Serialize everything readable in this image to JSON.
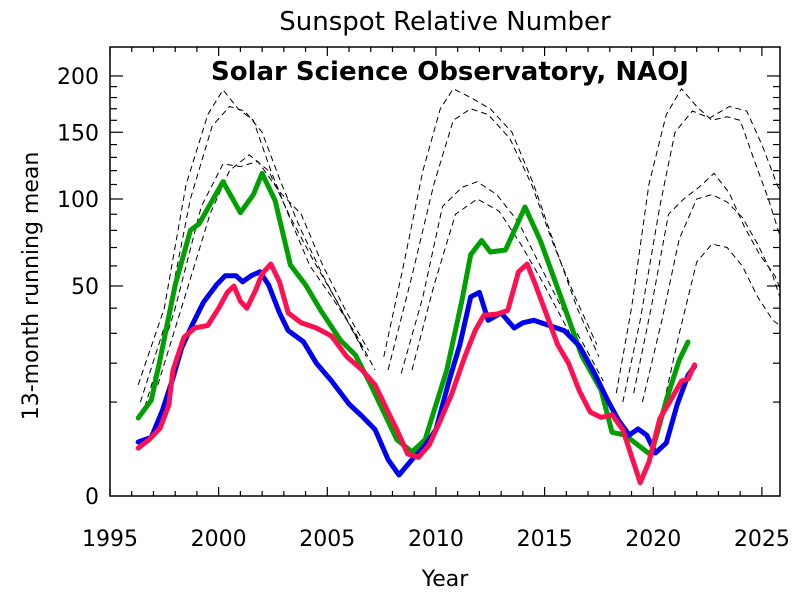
{
  "chart_data": {
    "type": "line",
    "title": "Sunspot Relative Number",
    "subtitle": "Solar Science Observatory, NAOJ",
    "xlabel": "Year",
    "ylabel": "13-month running mean",
    "y_scale": "sqrt",
    "xlim": [
      1995,
      2026
    ],
    "ylim": [
      0,
      220
    ],
    "x_ticks": [
      1995,
      2000,
      2005,
      2010,
      2015,
      2020,
      2025
    ],
    "y_ticks": [
      0,
      50,
      100,
      150,
      200
    ],
    "x_minor_step": 1,
    "y_minor_ticks": [
      10,
      20,
      30,
      40,
      60,
      70,
      80,
      90,
      110,
      120,
      130,
      140,
      160,
      170,
      180,
      190
    ],
    "series": [
      {
        "name": "green",
        "color": "#00a000",
        "style": "solid",
        "points": [
          [
            1996.3,
            6.9
          ],
          [
            1996.9,
            10.4
          ],
          [
            1997.3,
            21
          ],
          [
            1998.0,
            50.5
          ],
          [
            1998.7,
            80
          ],
          [
            1999.1,
            84
          ],
          [
            1999.9,
            104
          ],
          [
            2000.2,
            112
          ],
          [
            2001.0,
            91
          ],
          [
            2001.6,
            103
          ],
          [
            2002.0,
            118
          ],
          [
            2002.6,
            99
          ],
          [
            2003.3,
            60.5
          ],
          [
            2004.0,
            50.5
          ],
          [
            2004.7,
            39
          ],
          [
            2005.6,
            27.6
          ],
          [
            2006.3,
            22.5
          ],
          [
            2007.0,
            14
          ],
          [
            2008.2,
            3.6
          ],
          [
            2008.9,
            2.2
          ],
          [
            2009.5,
            3.6
          ],
          [
            2010.5,
            18
          ],
          [
            2011.2,
            43.5
          ],
          [
            2011.6,
            66
          ],
          [
            2012.1,
            74
          ],
          [
            2012.5,
            67.5
          ],
          [
            2013.2,
            68.6
          ],
          [
            2013.7,
            82.6
          ],
          [
            2014.1,
            94.7
          ],
          [
            2014.8,
            74
          ],
          [
            2015.8,
            43.5
          ],
          [
            2016.7,
            22.5
          ],
          [
            2017.6,
            12.7
          ],
          [
            2018.1,
            4.6
          ],
          [
            2018.7,
            4.2
          ],
          [
            2019.9,
            1.9
          ],
          [
            2020.6,
            10.4
          ],
          [
            2021.2,
            21
          ],
          [
            2021.6,
            26.9
          ]
        ]
      },
      {
        "name": "blue",
        "color": "#0000f0",
        "style": "solid",
        "points": [
          [
            1996.3,
            3.3
          ],
          [
            1996.9,
            3.9
          ],
          [
            1997.4,
            8.2
          ],
          [
            1997.9,
            15.8
          ],
          [
            1998.3,
            24.9
          ],
          [
            1998.8,
            33.5
          ],
          [
            1999.3,
            42.5
          ],
          [
            1999.9,
            50.5
          ],
          [
            2000.3,
            55
          ],
          [
            2000.8,
            55
          ],
          [
            2001.1,
            52
          ],
          [
            2001.5,
            55
          ],
          [
            2001.9,
            57
          ],
          [
            2002.3,
            50.5
          ],
          [
            2002.8,
            38
          ],
          [
            2003.2,
            31
          ],
          [
            2003.9,
            27
          ],
          [
            2004.5,
            20
          ],
          [
            2005.2,
            15
          ],
          [
            2006.0,
            9.6
          ],
          [
            2006.6,
            7.2
          ],
          [
            2007.2,
            5
          ],
          [
            2007.8,
            1.5
          ],
          [
            2008.3,
            0.5
          ],
          [
            2008.9,
            1.5
          ],
          [
            2009.5,
            2.9
          ],
          [
            2010.0,
            5
          ],
          [
            2010.6,
            15
          ],
          [
            2011.1,
            26
          ],
          [
            2011.6,
            45
          ],
          [
            2012.0,
            47
          ],
          [
            2012.4,
            35
          ],
          [
            2013.0,
            38
          ],
          [
            2013.6,
            32
          ],
          [
            2014.0,
            34
          ],
          [
            2014.5,
            35
          ],
          [
            2015.2,
            33
          ],
          [
            2015.9,
            31
          ],
          [
            2016.6,
            25.5
          ],
          [
            2017.3,
            17
          ],
          [
            2017.9,
            10.4
          ],
          [
            2018.4,
            6.5
          ],
          [
            2018.9,
            4.2
          ],
          [
            2019.3,
            5.1
          ],
          [
            2019.7,
            4.2
          ],
          [
            2020.1,
            2.1
          ],
          [
            2020.6,
            3.2
          ],
          [
            2021.1,
            9.5
          ],
          [
            2021.6,
            16.5
          ],
          [
            2021.9,
            19
          ]
        ]
      },
      {
        "name": "red",
        "color": "#ff1050",
        "style": "solid",
        "points": [
          [
            1996.3,
            2.6
          ],
          [
            1996.8,
            3.6
          ],
          [
            1997.3,
            5.2
          ],
          [
            1997.7,
            9.3
          ],
          [
            1997.9,
            18
          ],
          [
            1998.4,
            28.5
          ],
          [
            1998.9,
            32
          ],
          [
            1999.5,
            33
          ],
          [
            2000.0,
            40
          ],
          [
            2000.4,
            47
          ],
          [
            2000.7,
            50
          ],
          [
            2001.0,
            43
          ],
          [
            2001.3,
            40
          ],
          [
            2001.7,
            48
          ],
          [
            2002.0,
            56
          ],
          [
            2002.4,
            61
          ],
          [
            2002.8,
            52
          ],
          [
            2003.2,
            38
          ],
          [
            2003.8,
            34
          ],
          [
            2004.5,
            32
          ],
          [
            2005.2,
            29
          ],
          [
            2005.9,
            22
          ],
          [
            2006.6,
            18
          ],
          [
            2007.2,
            14
          ],
          [
            2007.8,
            8
          ],
          [
            2008.2,
            5
          ],
          [
            2008.7,
            2
          ],
          [
            2009.2,
            1.7
          ],
          [
            2009.7,
            3
          ],
          [
            2010.2,
            6.5
          ],
          [
            2010.7,
            11.5
          ],
          [
            2011.3,
            21.5
          ],
          [
            2011.8,
            31
          ],
          [
            2012.2,
            37
          ],
          [
            2012.8,
            37.5
          ],
          [
            2013.3,
            39
          ],
          [
            2013.8,
            57
          ],
          [
            2014.2,
            61
          ],
          [
            2014.6,
            50
          ],
          [
            2015.1,
            37
          ],
          [
            2015.6,
            26
          ],
          [
            2016.1,
            20
          ],
          [
            2016.6,
            12.5
          ],
          [
            2017.1,
            8
          ],
          [
            2017.6,
            7
          ],
          [
            2018.1,
            7.5
          ],
          [
            2018.6,
            5
          ],
          [
            2019.0,
            1.8
          ],
          [
            2019.4,
            0.2
          ],
          [
            2019.8,
            1.3
          ],
          [
            2020.3,
            6.8
          ],
          [
            2020.8,
            10.4
          ],
          [
            2021.3,
            15
          ],
          [
            2021.6,
            15.5
          ],
          [
            2021.9,
            19.5
          ]
        ]
      }
    ],
    "dashed_series": [
      {
        "name": "prediction-cycle23-a",
        "color": "#000000",
        "points": [
          [
            1996.3,
            14
          ],
          [
            1997.5,
            40
          ],
          [
            1998.5,
            110
          ],
          [
            1999.5,
            165
          ],
          [
            2000.2,
            187
          ],
          [
            2000.9,
            170
          ],
          [
            2001.6,
            160
          ],
          [
            2002.4,
            120
          ],
          [
            2003.2,
            90
          ],
          [
            2004.2,
            60
          ],
          [
            2005.2,
            45
          ],
          [
            2006.3,
            30
          ],
          [
            2007.2,
            18
          ]
        ]
      },
      {
        "name": "prediction-cycle23-b",
        "color": "#000000",
        "points": [
          [
            1996.4,
            10
          ],
          [
            1997.6,
            35
          ],
          [
            1998.7,
            100
          ],
          [
            1999.7,
            155
          ],
          [
            2000.5,
            172
          ],
          [
            2001.2,
            168
          ],
          [
            2002.0,
            150
          ],
          [
            2002.9,
            110
          ],
          [
            2003.8,
            80
          ],
          [
            2004.8,
            55
          ],
          [
            2005.9,
            35
          ],
          [
            2006.8,
            22
          ]
        ]
      },
      {
        "name": "prediction-cycle23-c",
        "color": "#000000",
        "points": [
          [
            1996.6,
            9
          ],
          [
            1998.0,
            40
          ],
          [
            1999.2,
            95
          ],
          [
            2000.2,
            125
          ],
          [
            2001.0,
            123
          ],
          [
            2001.8,
            127
          ],
          [
            2002.8,
            105
          ],
          [
            2003.8,
            90
          ],
          [
            2004.8,
            60
          ],
          [
            2005.9,
            38
          ],
          [
            2006.9,
            24
          ]
        ]
      },
      {
        "name": "prediction-cycle23-d",
        "color": "#000000",
        "points": [
          [
            1997.2,
            14
          ],
          [
            1998.6,
            50
          ],
          [
            1999.6,
            90
          ],
          [
            2000.5,
            120
          ],
          [
            2001.4,
            132
          ],
          [
            2002.3,
            120
          ],
          [
            2003.3,
            88
          ],
          [
            2004.4,
            62
          ],
          [
            2005.5,
            42
          ],
          [
            2006.6,
            25
          ]
        ]
      },
      {
        "name": "prediction-cycle24-a",
        "color": "#000000",
        "points": [
          [
            2007.6,
            22
          ],
          [
            2008.5,
            60
          ],
          [
            2009.4,
            120
          ],
          [
            2010.2,
            170
          ],
          [
            2010.8,
            188
          ],
          [
            2011.6,
            180
          ],
          [
            2012.5,
            170
          ],
          [
            2013.5,
            150
          ],
          [
            2014.5,
            110
          ],
          [
            2015.5,
            70
          ],
          [
            2016.5,
            40
          ],
          [
            2017.5,
            22
          ]
        ]
      },
      {
        "name": "prediction-cycle24-b",
        "color": "#000000",
        "points": [
          [
            2007.8,
            18
          ],
          [
            2008.9,
            55
          ],
          [
            2009.9,
            110
          ],
          [
            2010.8,
            160
          ],
          [
            2011.6,
            170
          ],
          [
            2012.4,
            165
          ],
          [
            2013.4,
            145
          ],
          [
            2014.4,
            110
          ],
          [
            2015.4,
            72
          ],
          [
            2016.4,
            45
          ],
          [
            2017.4,
            26
          ]
        ]
      },
      {
        "name": "prediction-cycle24-c",
        "color": "#000000",
        "points": [
          [
            2008.4,
            17
          ],
          [
            2009.4,
            45
          ],
          [
            2010.3,
            95
          ],
          [
            2011.2,
            108
          ],
          [
            2011.9,
            112
          ],
          [
            2012.8,
            103
          ],
          [
            2013.8,
            85
          ],
          [
            2014.8,
            60
          ],
          [
            2015.8,
            40
          ],
          [
            2016.8,
            26
          ],
          [
            2017.7,
            15
          ]
        ]
      },
      {
        "name": "prediction-cycle24-d",
        "color": "#000000",
        "points": [
          [
            2008.9,
            18
          ],
          [
            2009.9,
            50
          ],
          [
            2010.9,
            90
          ],
          [
            2011.9,
            100
          ],
          [
            2012.9,
            92
          ],
          [
            2013.9,
            72
          ],
          [
            2014.9,
            52
          ],
          [
            2015.9,
            34
          ],
          [
            2016.9,
            20
          ]
        ]
      },
      {
        "name": "prediction-cycle25-a",
        "color": "#000000",
        "points": [
          [
            2018.3,
            12
          ],
          [
            2019.0,
            40
          ],
          [
            2019.8,
            110
          ],
          [
            2020.6,
            165
          ],
          [
            2021.3,
            188
          ],
          [
            2022.0,
            172
          ],
          [
            2022.7,
            160
          ],
          [
            2023.4,
            163
          ],
          [
            2024.0,
            160
          ],
          [
            2024.6,
            130
          ],
          [
            2025.3,
            100
          ],
          [
            2026.0,
            70
          ]
        ]
      },
      {
        "name": "prediction-cycle25-b",
        "color": "#000000",
        "points": [
          [
            2018.6,
            10
          ],
          [
            2019.4,
            35
          ],
          [
            2020.3,
            95
          ],
          [
            2021.0,
            150
          ],
          [
            2021.8,
            168
          ],
          [
            2022.6,
            162
          ],
          [
            2023.5,
            172
          ],
          [
            2024.3,
            168
          ],
          [
            2025.0,
            140
          ],
          [
            2025.7,
            110
          ],
          [
            2026.0,
            100
          ]
        ]
      },
      {
        "name": "prediction-cycle25-c",
        "color": "#000000",
        "points": [
          [
            2019.1,
            12
          ],
          [
            2019.9,
            40
          ],
          [
            2020.7,
            90
          ],
          [
            2021.4,
            100
          ],
          [
            2022.1,
            108
          ],
          [
            2022.8,
            118
          ],
          [
            2023.5,
            104
          ],
          [
            2024.2,
            82
          ],
          [
            2024.9,
            66
          ],
          [
            2025.6,
            55
          ],
          [
            2026.0,
            45
          ]
        ]
      },
      {
        "name": "prediction-cycle25-d",
        "color": "#000000",
        "points": [
          [
            2019.5,
            10
          ],
          [
            2020.4,
            35
          ],
          [
            2021.2,
            75
          ],
          [
            2022.0,
            100
          ],
          [
            2022.7,
            103
          ],
          [
            2023.4,
            98
          ],
          [
            2024.1,
            88
          ],
          [
            2024.8,
            72
          ],
          [
            2025.5,
            55
          ],
          [
            2026.0,
            40
          ]
        ]
      },
      {
        "name": "prediction-cycle25-e",
        "color": "#000000",
        "points": [
          [
            2020.4,
            8
          ],
          [
            2021.2,
            30
          ],
          [
            2022.0,
            62
          ],
          [
            2022.7,
            72
          ],
          [
            2023.4,
            70
          ],
          [
            2024.1,
            60
          ],
          [
            2024.8,
            45
          ],
          [
            2025.5,
            35
          ],
          [
            2026.0,
            32
          ]
        ]
      }
    ]
  }
}
